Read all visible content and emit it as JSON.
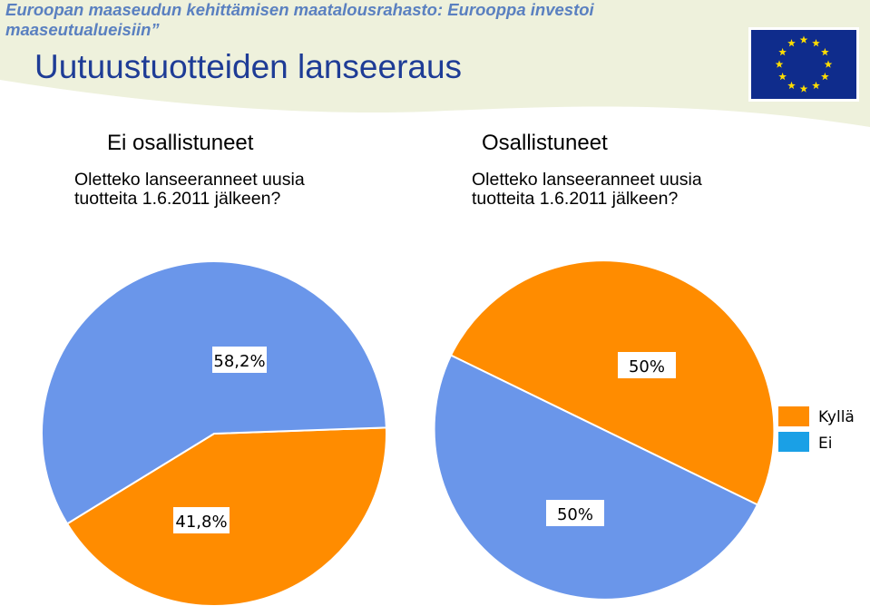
{
  "header": {
    "line1": "Euroopan maaseudun kehittämisen maatalousrahasto: Eurooppa investoi",
    "line2": "maaseutualueisiin”"
  },
  "slide_title": "Uutuustuotteiden lanseeraus",
  "colors": {
    "orange": "#ff8c00",
    "blue": "#6a96ea",
    "legend_blue": "#1aa0e6",
    "title_blue": "#1e3c96",
    "header_blue": "#5a80c0",
    "flag_blue": "#0f2c8c",
    "flag_star": "#ffdd00",
    "swoosh": "#eef1dc"
  },
  "groups": [
    {
      "title": "Ei osallistuneet",
      "question": "Oletteko lanseeranneet uusia tuotteita 1.6.2011 jälkeen?"
    },
    {
      "title": "Osallistuneet",
      "question": "Oletteko lanseeranneet uusia tuotteita 1.6.2011 jälkeen?"
    }
  ],
  "chart_data": [
    {
      "type": "pie",
      "title": "Ei osallistuneet",
      "slices": [
        {
          "name": "Kyllä",
          "value": 41.8,
          "label": "41,8%"
        },
        {
          "name": "Ei",
          "value": 58.2,
          "label": "58,2%"
        }
      ]
    },
    {
      "type": "pie",
      "title": "Osallistuneet",
      "slices": [
        {
          "name": "Kyllä",
          "value": 50,
          "label": "50%"
        },
        {
          "name": "Ei",
          "value": 50,
          "label": "50%"
        }
      ],
      "legend": [
        "Kyllä",
        "Ei"
      ]
    }
  ]
}
